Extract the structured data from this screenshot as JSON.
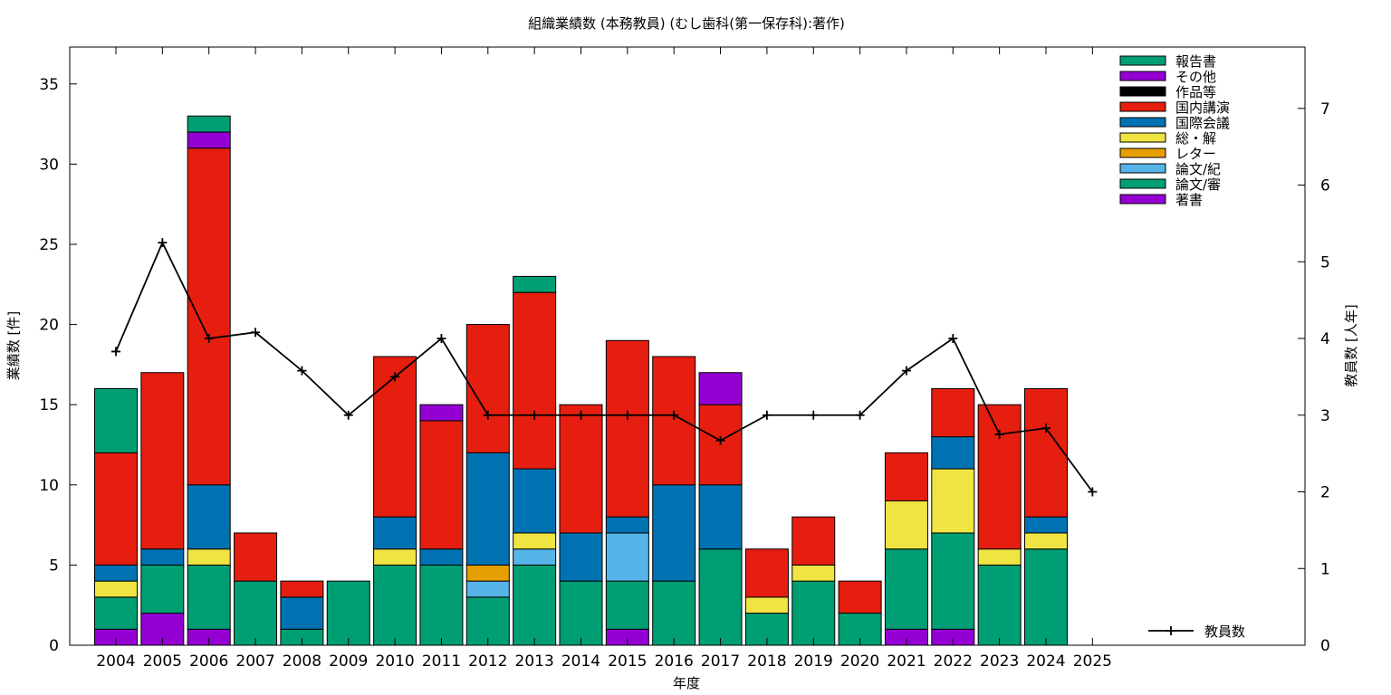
{
  "chart_data": {
    "type": "bar",
    "title": "組織業績数 (本務教員) (むし歯科(第一保存科):著作)",
    "xlabel": "年度",
    "ylabel": "業績数 [件]",
    "y2label": "教員数 [人年]",
    "categories": [
      "2004",
      "2005",
      "2006",
      "2007",
      "2008",
      "2009",
      "2010",
      "2011",
      "2012",
      "2013",
      "2014",
      "2015",
      "2016",
      "2017",
      "2018",
      "2019",
      "2020",
      "2021",
      "2022",
      "2023",
      "2024",
      "2025"
    ],
    "ylim": [
      0,
      37.3
    ],
    "y2lim": [
      0,
      7.8
    ],
    "yticks": [
      0,
      5,
      10,
      15,
      20,
      25,
      30,
      35
    ],
    "y2ticks": [
      0,
      1,
      2,
      3,
      4,
      5,
      6,
      7
    ],
    "stacked": true,
    "legend_position": "top-right",
    "series": [
      {
        "name": "著書",
        "color": "#9400d3",
        "values": [
          1,
          2,
          1,
          0,
          0,
          0,
          0,
          0,
          0,
          0,
          0,
          1,
          0,
          0,
          0,
          0,
          0,
          1,
          1,
          0,
          0,
          0
        ]
      },
      {
        "name": "論文/審",
        "color": "#009e73",
        "values": [
          2,
          3,
          4,
          4,
          1,
          4,
          5,
          5,
          3,
          5,
          4,
          3,
          4,
          6,
          2,
          4,
          2,
          5,
          6,
          5,
          6,
          0
        ]
      },
      {
        "name": "論文/紀",
        "color": "#56b4e9",
        "values": [
          0,
          0,
          0,
          0,
          0,
          0,
          0,
          0,
          1,
          1,
          0,
          3,
          0,
          0,
          0,
          0,
          0,
          0,
          0,
          0,
          0,
          0
        ]
      },
      {
        "name": "レター",
        "color": "#e69f00",
        "values": [
          0,
          0,
          0,
          0,
          0,
          0,
          0,
          0,
          1,
          0,
          0,
          0,
          0,
          0,
          0,
          0,
          0,
          0,
          0,
          0,
          0,
          0
        ]
      },
      {
        "name": "総・解",
        "color": "#f0e442",
        "values": [
          1,
          0,
          1,
          0,
          0,
          0,
          1,
          0,
          0,
          1,
          0,
          0,
          0,
          0,
          1,
          1,
          0,
          3,
          4,
          1,
          1,
          0
        ]
      },
      {
        "name": "国際会議",
        "color": "#0072b2",
        "values": [
          1,
          1,
          4,
          0,
          2,
          0,
          2,
          1,
          7,
          4,
          3,
          1,
          6,
          4,
          0,
          0,
          0,
          0,
          2,
          0,
          1,
          0
        ]
      },
      {
        "name": "国内講演",
        "color": "#e51e10",
        "values": [
          7,
          11,
          21,
          3,
          1,
          0,
          10,
          8,
          8,
          11,
          8,
          11,
          8,
          5,
          3,
          3,
          2,
          3,
          3,
          9,
          8,
          0
        ]
      },
      {
        "name": "作品等",
        "color": "#000000",
        "values": [
          0,
          0,
          0,
          0,
          0,
          0,
          0,
          0,
          0,
          0,
          0,
          0,
          0,
          0,
          0,
          0,
          0,
          0,
          0,
          0,
          0,
          0
        ]
      },
      {
        "name": "その他",
        "color": "#9400d3",
        "values": [
          0,
          0,
          1,
          0,
          0,
          0,
          0,
          1,
          0,
          0,
          0,
          0,
          0,
          2,
          0,
          0,
          0,
          0,
          0,
          0,
          0,
          0
        ]
      },
      {
        "name": "報告書",
        "color": "#009e73",
        "values": [
          4,
          0,
          1,
          0,
          0,
          0,
          0,
          0,
          0,
          1,
          0,
          0,
          0,
          0,
          0,
          0,
          0,
          0,
          0,
          0,
          0,
          0
        ]
      }
    ],
    "line_series": {
      "name": "教員数",
      "axis": "y2",
      "color": "#000000",
      "values": [
        3.83,
        5.25,
        4.0,
        4.08,
        3.58,
        3.0,
        3.5,
        4.0,
        3.0,
        3.0,
        3.0,
        3.0,
        3.0,
        2.67,
        3.0,
        3.0,
        3.0,
        3.58,
        4.0,
        2.75,
        2.83,
        2.0
      ]
    }
  }
}
